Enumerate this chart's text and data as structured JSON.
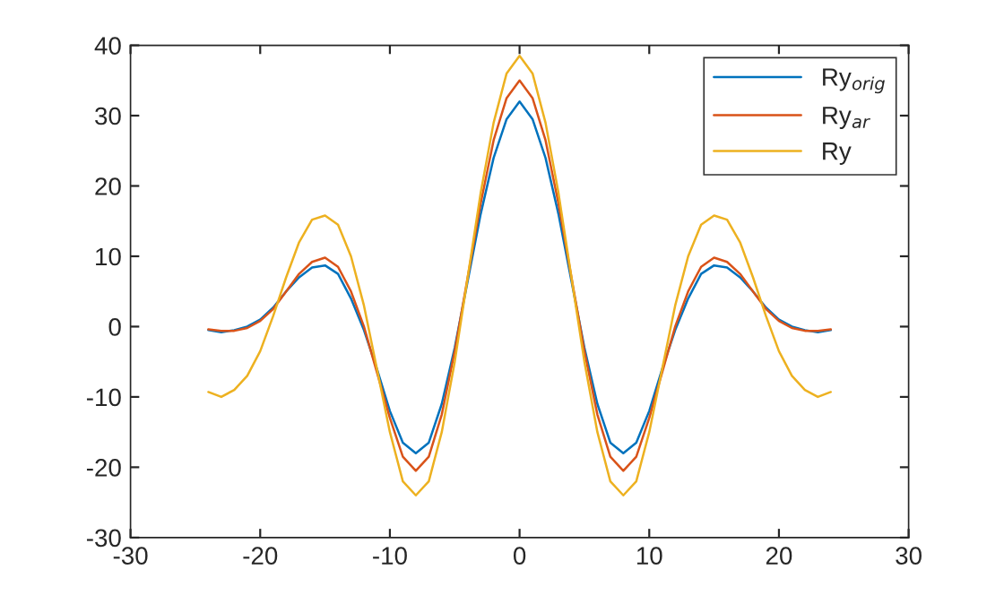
{
  "chart_data": {
    "type": "line",
    "x": [
      -24,
      -23,
      -22,
      -21,
      -20,
      -19,
      -18,
      -17,
      -16,
      -15,
      -14,
      -13,
      -12,
      -11,
      -10,
      -9,
      -8,
      -7,
      -6,
      -5,
      -4,
      -3,
      -2,
      -1,
      0,
      1,
      2,
      3,
      4,
      5,
      6,
      7,
      8,
      9,
      10,
      11,
      12,
      13,
      14,
      15,
      16,
      17,
      18,
      19,
      20,
      21,
      22,
      23,
      24
    ],
    "series": [
      {
        "name": "Ry$_{orig}$",
        "color": "#0072bd",
        "values": [
          -0.5,
          -0.8,
          -0.5,
          0,
          1,
          2.7,
          5,
          7,
          8.4,
          8.7,
          7.5,
          4,
          -0.5,
          -6,
          -12,
          -16.5,
          -18,
          -16.5,
          -11,
          -3,
          6.5,
          16,
          24,
          29.5,
          32,
          29.5,
          24,
          16,
          6.5,
          -3,
          -11,
          -16.5,
          -18,
          -16.5,
          -12,
          -6,
          -0.5,
          4,
          7.5,
          8.7,
          8.4,
          7,
          5,
          2.7,
          1,
          0,
          -0.5,
          -0.8,
          -0.5
        ]
      },
      {
        "name": "Ry$_{ar}$",
        "color": "#d95319",
        "values": [
          -0.4,
          -0.6,
          -0.6,
          -0.2,
          0.8,
          2.5,
          5,
          7.5,
          9.2,
          9.8,
          8.5,
          5,
          0,
          -6.5,
          -13,
          -18.5,
          -20.5,
          -18.5,
          -12.5,
          -3.5,
          7,
          17.5,
          26.5,
          32.5,
          35,
          32.5,
          26.5,
          17.5,
          7,
          -3.5,
          -12.5,
          -18.5,
          -20.5,
          -18.5,
          -13,
          -6.5,
          0,
          5,
          8.5,
          9.8,
          9.2,
          7.5,
          5,
          2.5,
          0.8,
          -0.2,
          -0.6,
          -0.6,
          -0.4
        ]
      },
      {
        "name": "Ry",
        "color": "#edb120",
        "values": [
          -9.3,
          -10,
          -9,
          -7,
          -3.5,
          1.5,
          7,
          12,
          15.2,
          15.8,
          14.5,
          10,
          3,
          -6,
          -15,
          -22,
          -24,
          -22,
          -15,
          -5,
          7,
          19,
          29,
          36,
          38.5,
          36,
          29,
          19,
          7,
          -5,
          -15,
          -22,
          -24,
          -22,
          -15,
          -6,
          3,
          10,
          14.5,
          15.8,
          15.2,
          12,
          7,
          1.5,
          -3.5,
          -7,
          -9,
          -10,
          -9.3
        ]
      }
    ],
    "xlim": [
      -30,
      30
    ],
    "xticks": [
      -30,
      -20,
      -10,
      0,
      10,
      20,
      30
    ],
    "ylim": [
      -30,
      40
    ],
    "yticks": [
      -30,
      -20,
      -10,
      0,
      10,
      20,
      30,
      40
    ],
    "legend": "top right",
    "grid": false,
    "marker": "none",
    "line_style": "solid"
  }
}
